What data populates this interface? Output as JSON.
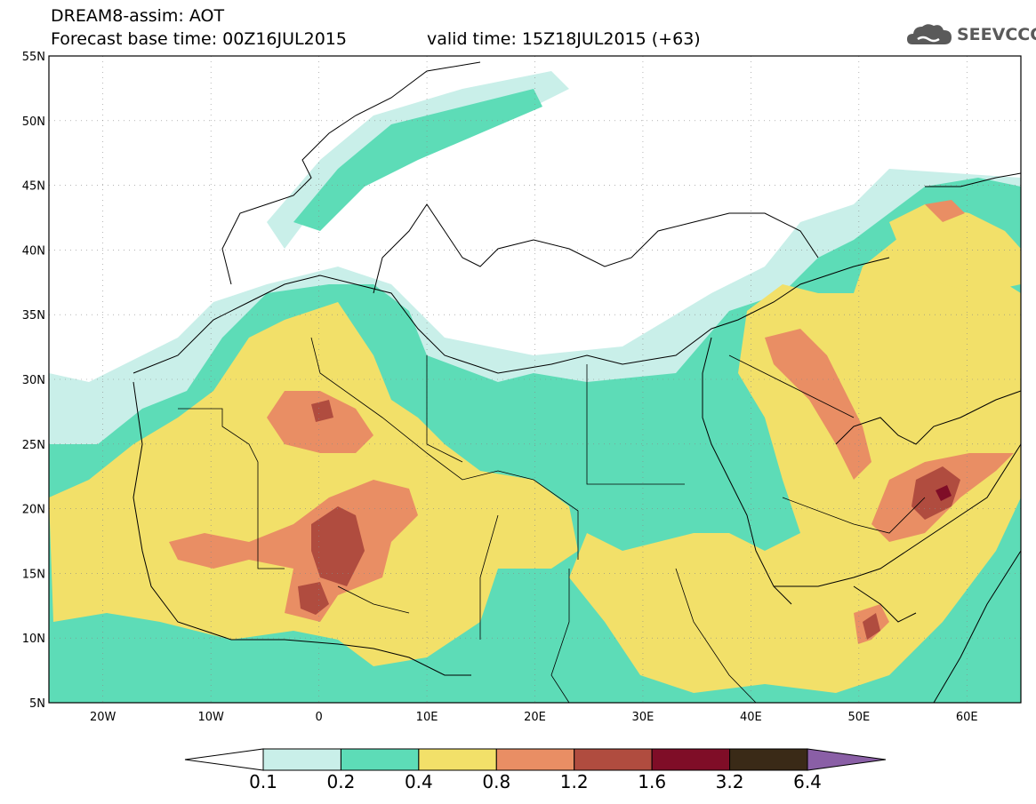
{
  "title": {
    "line1": "DREAM8-assim: AOT",
    "line2": "Forecast base time: 00Z16JUL2015",
    "valid": "valid time: 15Z18JUL2015 (+63)"
  },
  "logo": {
    "text": "SEEVCCC",
    "icon": "cloud-icon"
  },
  "map": {
    "lat_labels": [
      "55N",
      "50N",
      "45N",
      "40N",
      "35N",
      "30N",
      "25N",
      "20N",
      "15N",
      "10N",
      "5N"
    ],
    "lon_labels": [
      "20W",
      "10W",
      "0",
      "10E",
      "20E",
      "30E",
      "40E",
      "50E",
      "60E"
    ],
    "lat_range": [
      5,
      55
    ],
    "lon_range": [
      -25,
      65
    ],
    "grid": true
  },
  "colorbar": {
    "colors": [
      "#ffffff",
      "#c9efe9",
      "#5ddcb7",
      "#f2e069",
      "#e98e64",
      "#b04c3f",
      "#7f0d27",
      "#3a2a17",
      "#8a5fa6"
    ],
    "labels": [
      "0.1",
      "0.2",
      "0.4",
      "0.8",
      "1.2",
      "1.6",
      "3.2",
      "6.4"
    ]
  }
}
